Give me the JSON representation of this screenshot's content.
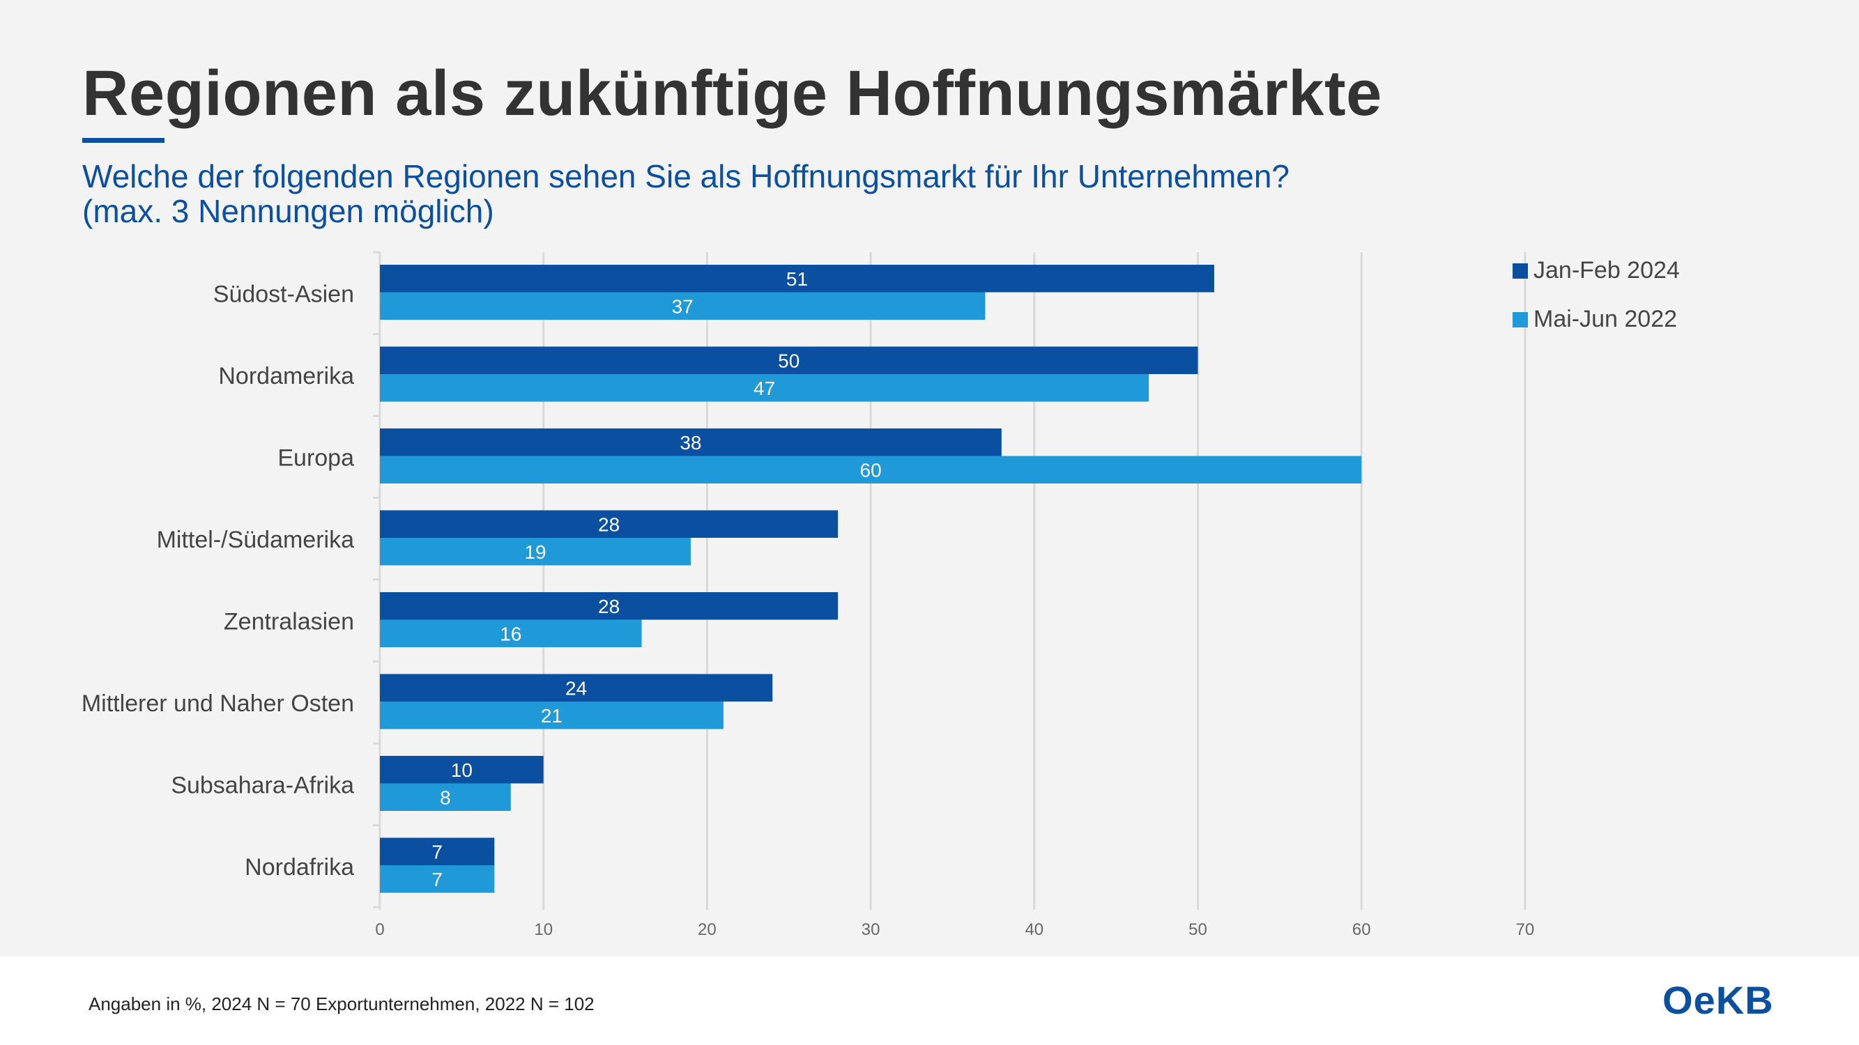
{
  "title": "Regionen als zukünftige Hoffnungsmärkte",
  "subtitle_line1": "Welche der folgenden Regionen sehen Sie als Hoffnungsmarkt für Ihr Unternehmen?",
  "subtitle_line2": "(max. 3 Nennungen möglich)",
  "footer_note": "Angaben in %, 2024 N = 70 Exportunternehmen, 2022 N = 102",
  "logo_text": "OeKB",
  "colors": {
    "series1": "#0a4fa0",
    "series2": "#2099d8",
    "title": "#333333",
    "subtitle": "#0a4fa0",
    "grid": "#d9d9d9",
    "background": "#f3f3f3"
  },
  "chart_data": {
    "type": "bar",
    "orientation": "horizontal",
    "categories": [
      "Südost-Asien",
      "Nordamerika",
      "Europa",
      "Mittel-/Südamerika",
      "Zentralasien",
      "Mittlerer und Naher Osten",
      "Subsahara-Afrika",
      "Nordafrika"
    ],
    "series": [
      {
        "name": "Jan-Feb 2024",
        "values": [
          51,
          50,
          38,
          28,
          28,
          24,
          10,
          7
        ]
      },
      {
        "name": "Mai-Jun 2022",
        "values": [
          37,
          47,
          60,
          19,
          16,
          21,
          8,
          7
        ]
      }
    ],
    "xlim": [
      0,
      70
    ],
    "xticks": [
      0,
      10,
      20,
      30,
      40,
      50,
      60,
      70
    ],
    "grid": true,
    "data_labels": true,
    "legend_position": "top-right"
  }
}
